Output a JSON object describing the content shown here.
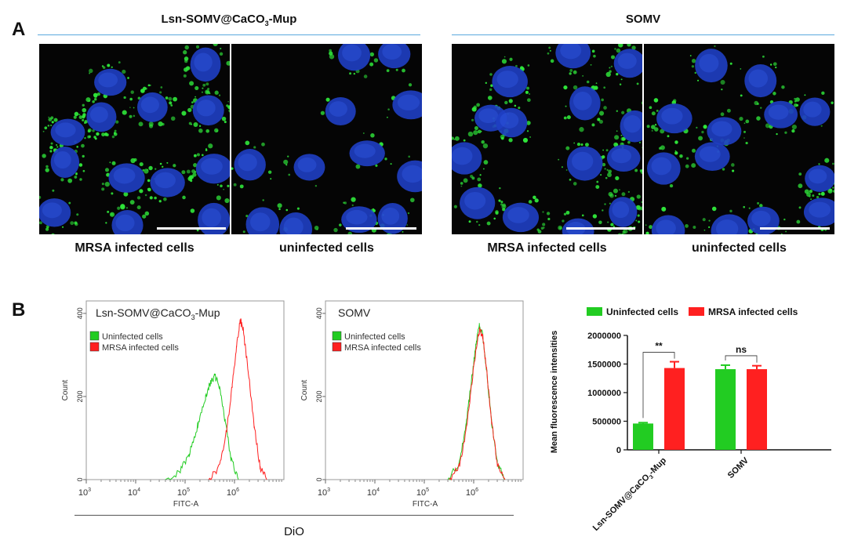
{
  "panel_a": {
    "letter": "A",
    "groups": [
      {
        "title": "Lsn-SOMV@CaCO3-Mup",
        "title_main": "Lsn-SOMV@CaCO",
        "title_sub": "3",
        "title_tail": "-Mup",
        "captions": [
          "MRSA infected cells",
          "uninfected cells"
        ],
        "green_density": [
          1.0,
          0.35
        ]
      },
      {
        "title": "SOMV",
        "captions": [
          "MRSA infected cells",
          "uninfected cells"
        ],
        "green_density": [
          1.0,
          0.6
        ]
      }
    ],
    "colors": {
      "nucleus": "#1f3fc4",
      "dye": "#2fe63a",
      "background": "#050505",
      "rule": "#5aa9de"
    }
  },
  "panel_b": {
    "letter": "B",
    "shared_xlabel": "DiO",
    "histograms": [
      {
        "title_main": "Lsn-SOMV@CaCO",
        "title_sub": "3",
        "title_tail": "-Mup",
        "legend": [
          "Uninfected cells",
          "MRSA infected cells"
        ],
        "xlabel": "FITC-A",
        "ylabel": "Count",
        "yticks": [
          "0",
          "200",
          "400"
        ],
        "xticks": [
          {
            "base": "10",
            "exp": "3"
          },
          {
            "base": "10",
            "exp": "4"
          },
          {
            "base": "10",
            "exp": "5"
          },
          {
            "base": "10",
            "exp": "6"
          }
        ]
      },
      {
        "title_main": "SOMV",
        "title_sub": "",
        "title_tail": "",
        "legend": [
          "Uninfected cells",
          "MRSA infected cells"
        ],
        "xlabel": "FITC-A",
        "ylabel": "Count",
        "yticks": [
          "0",
          "200",
          "400"
        ],
        "xticks": [
          {
            "base": "10",
            "exp": "3"
          },
          {
            "base": "10",
            "exp": "4"
          },
          {
            "base": "10",
            "exp": "5"
          },
          {
            "base": "10",
            "exp": "6"
          }
        ]
      }
    ],
    "bar": {
      "legend": [
        "Uninfected cells",
        "MRSA infected cells"
      ],
      "ylabel": "Mean fluorescence intensities",
      "yticks": [
        "0",
        "500000",
        "1000000",
        "1500000",
        "2000000"
      ],
      "categories": [
        {
          "main": "Lsn-SOMV@CaCO",
          "sub": "3",
          "tail": "-Mup"
        },
        {
          "main": "SOMV",
          "sub": "",
          "tail": ""
        }
      ],
      "annotations": [
        "**",
        "ns"
      ]
    }
  },
  "chart_data": [
    {
      "type": "line",
      "title": "Lsn-SOMV@CaCO3-Mup",
      "xlabel": "FITC-A",
      "ylabel": "Count",
      "x_scale": "log",
      "xlim": [
        1000,
        10000000
      ],
      "ylim": [
        0,
        430
      ],
      "grid": false,
      "legend_position": "top-left",
      "series": [
        {
          "name": "Uninfected cells",
          "color": "#22cc22",
          "x": [
            40000,
            80000,
            120000,
            180000,
            260000,
            330000,
            400000,
            500000,
            650000,
            850000,
            1200000
          ],
          "y": [
            0,
            20,
            60,
            130,
            200,
            235,
            250,
            220,
            140,
            50,
            0
          ]
        },
        {
          "name": "MRSA infected cells",
          "color": "#ff2020",
          "x": [
            300000,
            500000,
            700000,
            900000,
            1100000,
            1300000,
            1500000,
            1900000,
            2500000,
            3300000,
            4500000
          ],
          "y": [
            0,
            30,
            120,
            230,
            320,
            385,
            360,
            260,
            130,
            30,
            0
          ]
        }
      ]
    },
    {
      "type": "line",
      "title": "SOMV",
      "xlabel": "FITC-A",
      "ylabel": "Count",
      "x_scale": "log",
      "xlim": [
        1000,
        10000000
      ],
      "ylim": [
        0,
        430
      ],
      "grid": false,
      "legend_position": "top-left",
      "series": [
        {
          "name": "Uninfected cells",
          "color": "#22cc22",
          "x": [
            300000,
            500000,
            700000,
            900000,
            1100000,
            1300000,
            1500000,
            1800000,
            2300000,
            3000000,
            4200000
          ],
          "y": [
            0,
            40,
            130,
            240,
            320,
            370,
            350,
            270,
            140,
            40,
            0
          ]
        },
        {
          "name": "MRSA infected cells",
          "color": "#ff2020",
          "x": [
            320000,
            520000,
            720000,
            920000,
            1120000,
            1320000,
            1520000,
            1820000,
            2320000,
            3020000,
            4300000
          ],
          "y": [
            0,
            35,
            125,
            235,
            315,
            360,
            345,
            265,
            135,
            38,
            0
          ]
        }
      ]
    },
    {
      "type": "bar",
      "title": "",
      "xlabel": "",
      "ylabel": "Mean fluorescence intensities",
      "categories": [
        "Lsn-SOMV@CaCO3-Mup",
        "SOMV"
      ],
      "ylim": [
        0,
        2000000
      ],
      "grid": false,
      "legend_position": "top",
      "series": [
        {
          "name": "Uninfected cells",
          "color": "#22cc22",
          "values": [
            460000,
            1410000
          ],
          "errors": [
            15000,
            70000
          ]
        },
        {
          "name": "MRSA infected cells",
          "color": "#ff2020",
          "values": [
            1430000,
            1410000
          ],
          "errors": [
            110000,
            60000
          ]
        }
      ]
    }
  ]
}
